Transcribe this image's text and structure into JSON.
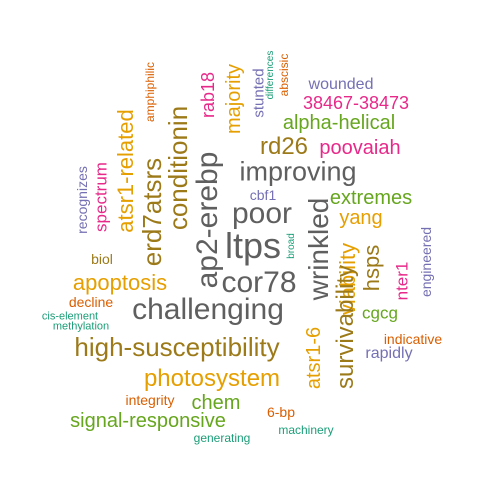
{
  "words": [
    {
      "text": "amphiphilic",
      "color": "rust"
    },
    {
      "text": "rab18",
      "color": "magenta"
    },
    {
      "text": "majority",
      "color": "orange"
    },
    {
      "text": "stunted",
      "color": "purple"
    },
    {
      "text": "differences",
      "color": "teal"
    },
    {
      "text": "abscisic",
      "color": "rust"
    },
    {
      "text": "wounded",
      "color": "purple"
    },
    {
      "text": "38467-38473",
      "color": "magenta"
    },
    {
      "text": "alpha-helical",
      "color": "green"
    },
    {
      "text": "conditionin",
      "color": "brown"
    },
    {
      "text": "atsr1-related",
      "color": "orange"
    },
    {
      "text": "rd26",
      "color": "brown"
    },
    {
      "text": "poovaiah",
      "color": "magenta"
    },
    {
      "text": "improving",
      "color": "gray"
    },
    {
      "text": "erd7atsrs",
      "color": "brown"
    },
    {
      "text": "ap2-erebp",
      "color": "gray"
    },
    {
      "text": "extremes",
      "color": "green"
    },
    {
      "text": "cbf1",
      "color": "purple"
    },
    {
      "text": "recognizes",
      "color": "purple"
    },
    {
      "text": "spectrum",
      "color": "magenta"
    },
    {
      "text": "poor",
      "color": "gray"
    },
    {
      "text": "wrinkled",
      "color": "gray"
    },
    {
      "text": "yang",
      "color": "orange"
    },
    {
      "text": "ltps",
      "color": "gray"
    },
    {
      "text": "broad",
      "color": "teal"
    },
    {
      "text": "engineered",
      "color": "purple"
    },
    {
      "text": "hsps",
      "color": "brown"
    },
    {
      "text": "biol",
      "color": "brown"
    },
    {
      "text": "viability",
      "color": "orange"
    },
    {
      "text": "nter1",
      "color": "magenta"
    },
    {
      "text": "cor78",
      "color": "gray"
    },
    {
      "text": "apoptosis",
      "color": "orange"
    },
    {
      "text": "decline",
      "color": "rust"
    },
    {
      "text": "cgcg",
      "color": "green"
    },
    {
      "text": "challenging",
      "color": "gray"
    },
    {
      "text": "cis-element",
      "color": "teal"
    },
    {
      "text": "methylation",
      "color": "teal"
    },
    {
      "text": "atsr1-6",
      "color": "orange"
    },
    {
      "text": "survivability",
      "color": "brown"
    },
    {
      "text": "indicative",
      "color": "rust"
    },
    {
      "text": "high-susceptibility",
      "color": "brown"
    },
    {
      "text": "rapidly",
      "color": "purple"
    },
    {
      "text": "photosystem",
      "color": "orange"
    },
    {
      "text": "chem",
      "color": "green"
    },
    {
      "text": "integrity",
      "color": "rust"
    },
    {
      "text": "6-bp",
      "color": "rust"
    },
    {
      "text": "signal-responsive",
      "color": "green"
    },
    {
      "text": "machinery",
      "color": "teal"
    },
    {
      "text": "generating",
      "color": "teal"
    }
  ]
}
